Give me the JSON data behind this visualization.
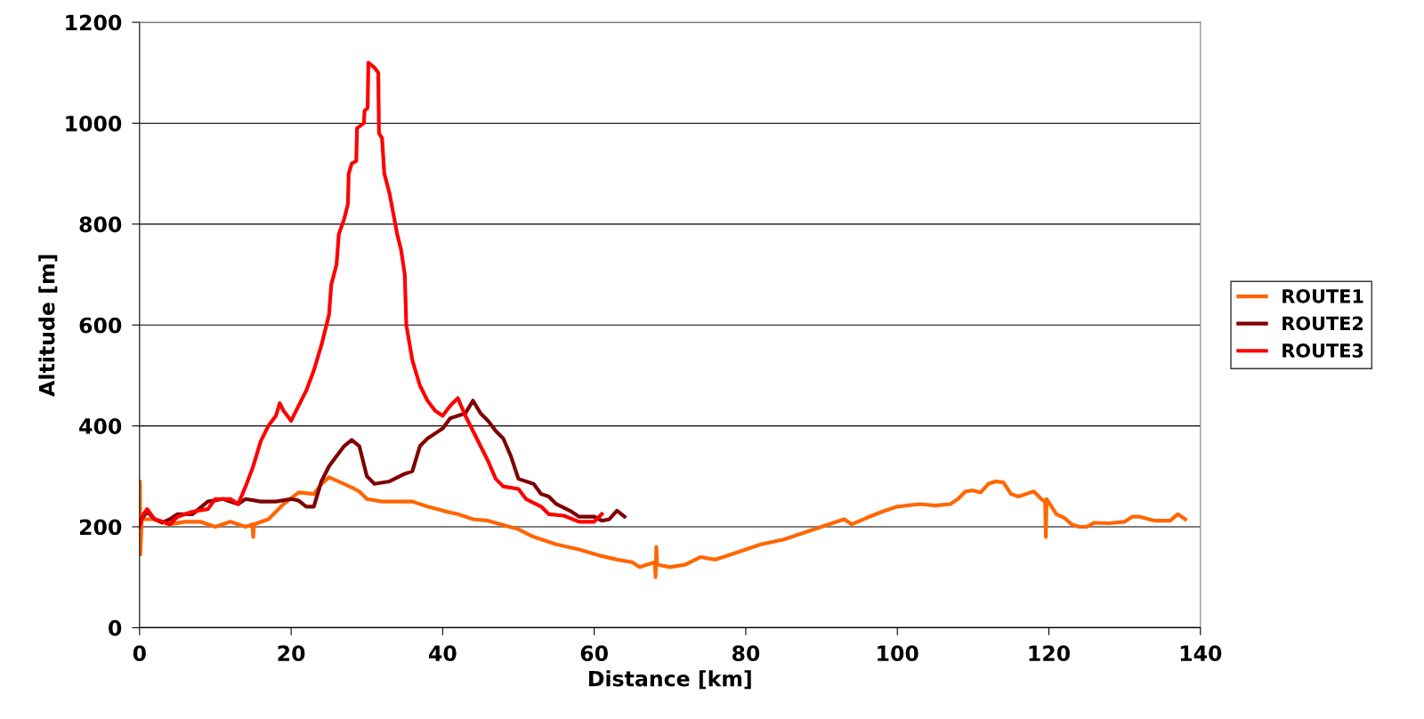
{
  "chart_data": {
    "type": "line",
    "xlabel": "Distance [km]",
    "ylabel": "Altitude [m]",
    "xlim": [
      0,
      140
    ],
    "xticks": [
      0,
      20,
      40,
      60,
      80,
      100,
      120,
      140
    ],
    "ylim": [
      0,
      1200
    ],
    "yticks": [
      0,
      200,
      400,
      600,
      800,
      1000,
      1200
    ],
    "grid": "y",
    "legend": "right",
    "marker": "none",
    "line_style": "solid",
    "series": [
      {
        "name": "ROUTE1",
        "color": "#ff6600",
        "x": [
          0,
          0.05,
          0.1,
          0.3,
          2,
          4,
          6,
          8,
          10,
          12,
          14,
          14.9,
          15,
          15.1,
          17,
          19,
          21,
          23,
          24,
          25,
          27,
          28,
          29,
          30,
          32,
          36,
          38,
          40,
          42,
          44,
          46,
          50,
          52,
          55,
          58,
          61,
          63,
          65,
          66,
          67,
          68,
          68.1,
          68.2,
          68.3,
          70,
          72,
          74,
          76,
          78,
          80,
          82,
          85,
          88,
          90,
          92,
          93,
          94,
          96,
          98,
          100,
          103,
          105,
          107,
          108,
          109,
          110,
          111,
          112,
          113,
          114,
          115,
          116,
          117,
          118,
          119,
          119.5,
          119.6,
          119.7,
          121,
          122,
          123,
          124,
          125,
          126,
          128,
          130,
          131,
          132,
          134,
          136,
          137,
          138
        ],
        "values": [
          210,
          290,
          145,
          215,
          215,
          205,
          210,
          210,
          200,
          210,
          200,
          205,
          180,
          205,
          215,
          245,
          268,
          265,
          285,
          298,
          285,
          278,
          270,
          255,
          250,
          250,
          240,
          232,
          225,
          215,
          212,
          195,
          180,
          165,
          155,
          142,
          135,
          130,
          120,
          125,
          130,
          100,
          160,
          125,
          120,
          125,
          140,
          135,
          145,
          155,
          165,
          175,
          190,
          200,
          210,
          215,
          205,
          218,
          230,
          240,
          245,
          242,
          245,
          255,
          270,
          272,
          268,
          285,
          290,
          288,
          265,
          260,
          265,
          270,
          255,
          250,
          180,
          255,
          225,
          218,
          205,
          200,
          200,
          208,
          207,
          210,
          220,
          220,
          212,
          212,
          225,
          215
        ]
      },
      {
        "name": "ROUTE2",
        "color": "#800000",
        "x": [
          0,
          1,
          2,
          3,
          4,
          5,
          7,
          9,
          11,
          13,
          14,
          16,
          18,
          20,
          21,
          22,
          23,
          24,
          25,
          26,
          27,
          28,
          29,
          30,
          31,
          33,
          35,
          36,
          37,
          38,
          39,
          40,
          41,
          42,
          43,
          44,
          45,
          46,
          47,
          48,
          49,
          50,
          52,
          53,
          54,
          55,
          57,
          58,
          60,
          61,
          62,
          63,
          64
        ],
        "values": [
          210,
          230,
          215,
          208,
          215,
          225,
          225,
          250,
          255,
          245,
          255,
          250,
          250,
          255,
          252,
          240,
          240,
          290,
          320,
          340,
          360,
          372,
          360,
          300,
          285,
          290,
          305,
          310,
          360,
          375,
          385,
          395,
          415,
          420,
          425,
          450,
          425,
          410,
          390,
          375,
          340,
          295,
          285,
          265,
          260,
          245,
          230,
          220,
          220,
          212,
          215,
          232,
          220
        ]
      },
      {
        "name": "ROUTE3",
        "color": "#ff0000",
        "x": [
          0,
          0.5,
          1,
          2,
          3,
          4,
          5,
          7,
          9,
          10,
          12,
          13,
          14,
          15,
          16,
          17,
          18,
          18.5,
          19,
          20,
          21,
          22,
          23,
          24,
          25,
          25.3,
          26,
          26.3,
          27,
          27.5,
          27.6,
          28,
          28.6,
          28.7,
          29.6,
          29.7,
          30.1,
          30.2,
          31,
          31.5,
          31.6,
          32,
          32.3,
          33,
          33.5,
          34,
          34.5,
          35,
          35.2,
          36,
          37,
          38,
          39,
          40,
          41,
          42,
          43,
          44,
          45,
          46,
          47,
          48,
          50,
          51,
          53,
          54,
          56,
          58,
          60,
          61
        ],
        "values": [
          200,
          225,
          235,
          215,
          210,
          205,
          220,
          230,
          235,
          255,
          255,
          245,
          280,
          320,
          370,
          400,
          420,
          445,
          430,
          410,
          440,
          470,
          510,
          560,
          620,
          680,
          720,
          780,
          810,
          840,
          900,
          920,
          925,
          990,
          1000,
          1025,
          1030,
          1120,
          1110,
          1100,
          980,
          970,
          900,
          860,
          820,
          780,
          750,
          700,
          600,
          530,
          480,
          450,
          430,
          420,
          440,
          455,
          420,
          390,
          360,
          330,
          295,
          280,
          275,
          255,
          240,
          225,
          222,
          210,
          210,
          225
        ]
      }
    ]
  }
}
